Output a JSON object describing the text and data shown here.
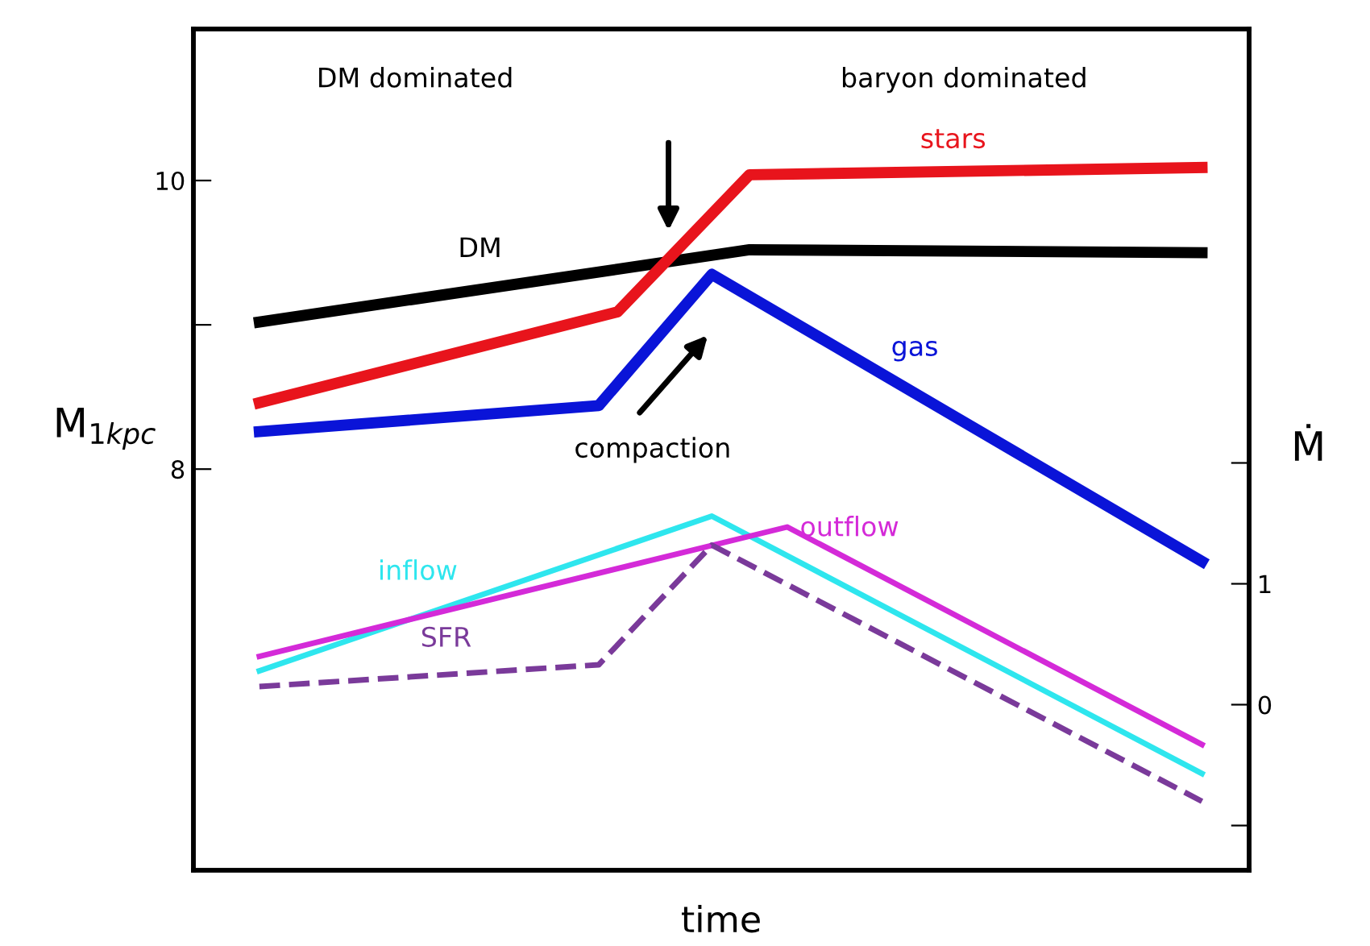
{
  "chart_data": {
    "type": "line",
    "xlabel": "time",
    "ylabel": "M$_{1kpc}$",
    "y2label": "Ṁ",
    "categories": [
      null,
      null,
      null,
      null,
      null,
      null,
      null,
      null,
      null,
      null,
      null,
      null,
      null,
      null,
      null,
      null,
      null,
      null,
      null,
      null,
      null,
      null,
      null,
      null,
      null,
      null,
      null,
      null,
      null,
      null,
      null,
      null,
      null,
      null,
      null,
      null,
      null,
      null,
      null,
      null,
      null,
      null,
      null,
      null,
      null,
      null,
      null,
      null,
      null,
      null,
      null,
      null,
      null,
      null,
      null,
      null
    ],
    "ylim": [
      5.22,
      11.05
    ],
    "yticks": [
      8,
      {
        "value": 9,
        "label": null
      },
      10
    ],
    "y2lim": [
      -1.37,
      5.59
    ],
    "y2ticks": [
      {
        "value": -1,
        "label": null
      },
      0,
      1,
      {
        "value": 2,
        "label": null
      }
    ],
    "tick_labels": "y",
    "grid": false,
    "legend": false,
    "marker": "none",
    "series": [
      {
        "name": "DM",
        "color": "#000000",
        "line_style": "solid",
        "values": [
          null,
          null,
          null,
          9.02,
          null,
          null,
          null,
          null,
          null,
          null,
          null,
          null,
          null,
          null,
          null,
          null,
          null,
          null,
          null,
          null,
          null,
          null,
          null,
          null,
          null,
          null,
          null,
          null,
          null,
          9.52,
          null,
          null,
          null,
          null,
          null,
          null,
          null,
          null,
          null,
          null,
          null,
          null,
          null,
          null,
          null,
          null,
          null,
          null,
          null,
          null,
          null,
          null,
          null,
          9.5,
          null,
          null
        ]
      },
      {
        "name": "stars",
        "color": "#e8141c",
        "line_style": "solid",
        "values": [
          null,
          null,
          null,
          8.46,
          null,
          null,
          null,
          null,
          null,
          null,
          null,
          null,
          null,
          null,
          null,
          null,
          null,
          null,
          null,
          null,
          null,
          null,
          9.09,
          null,
          null,
          null,
          null,
          null,
          null,
          10.04,
          null,
          null,
          null,
          null,
          null,
          null,
          null,
          null,
          null,
          null,
          null,
          null,
          null,
          null,
          null,
          null,
          null,
          null,
          null,
          null,
          null,
          null,
          null,
          10.09,
          null,
          null
        ]
      },
      {
        "name": "gas",
        "color": "#0a14d8",
        "line_style": "solid",
        "values": [
          null,
          null,
          null,
          8.26,
          null,
          null,
          null,
          null,
          null,
          null,
          null,
          null,
          null,
          null,
          null,
          null,
          null,
          null,
          null,
          null,
          null,
          8.44,
          null,
          null,
          null,
          null,
          null,
          9.35,
          null,
          null,
          null,
          null,
          null,
          null,
          null,
          null,
          null,
          null,
          null,
          null,
          null,
          null,
          null,
          null,
          null,
          null,
          null,
          null,
          null,
          null,
          null,
          null,
          null,
          7.36,
          null,
          null
        ]
      },
      {
        "name": "inflow",
        "color": "#2ee6ee",
        "axis": "y2",
        "line_style": "solid",
        "values": [
          null,
          null,
          null,
          0.28,
          null,
          null,
          null,
          null,
          null,
          null,
          null,
          null,
          null,
          null,
          null,
          null,
          null,
          null,
          null,
          null,
          null,
          null,
          null,
          null,
          null,
          null,
          null,
          1.56,
          null,
          null,
          null,
          null,
          null,
          null,
          null,
          null,
          null,
          null,
          null,
          null,
          null,
          null,
          null,
          null,
          null,
          null,
          null,
          null,
          null,
          null,
          null,
          null,
          null,
          -0.57,
          null,
          null
        ]
      },
      {
        "name": "outflow",
        "color": "#d42ad8",
        "axis": "y2",
        "line_style": "solid",
        "values": [
          null,
          null,
          null,
          0.4,
          null,
          null,
          null,
          null,
          null,
          null,
          null,
          null,
          null,
          null,
          null,
          null,
          null,
          null,
          null,
          null,
          null,
          null,
          null,
          null,
          null,
          null,
          null,
          null,
          null,
          null,
          null,
          1.47,
          null,
          null,
          null,
          null,
          null,
          null,
          null,
          null,
          null,
          null,
          null,
          null,
          null,
          null,
          null,
          null,
          null,
          null,
          null,
          null,
          null,
          -0.33,
          null,
          null
        ]
      },
      {
        "name": "SFR",
        "color": "#7a3a9a",
        "axis": "y2",
        "line_style": "dashed",
        "values": [
          null,
          null,
          null,
          0.15,
          null,
          null,
          null,
          null,
          null,
          null,
          null,
          null,
          null,
          null,
          null,
          null,
          null,
          null,
          null,
          null,
          null,
          0.33,
          null,
          null,
          null,
          null,
          null,
          1.32,
          null,
          null,
          null,
          null,
          null,
          null,
          null,
          null,
          null,
          null,
          null,
          null,
          null,
          null,
          null,
          null,
          null,
          null,
          null,
          null,
          null,
          null,
          null,
          null,
          null,
          -0.8,
          null,
          null
        ]
      }
    ],
    "annotations": [
      "DM dominated",
      "baryon dominated",
      "compaction"
    ]
  }
}
